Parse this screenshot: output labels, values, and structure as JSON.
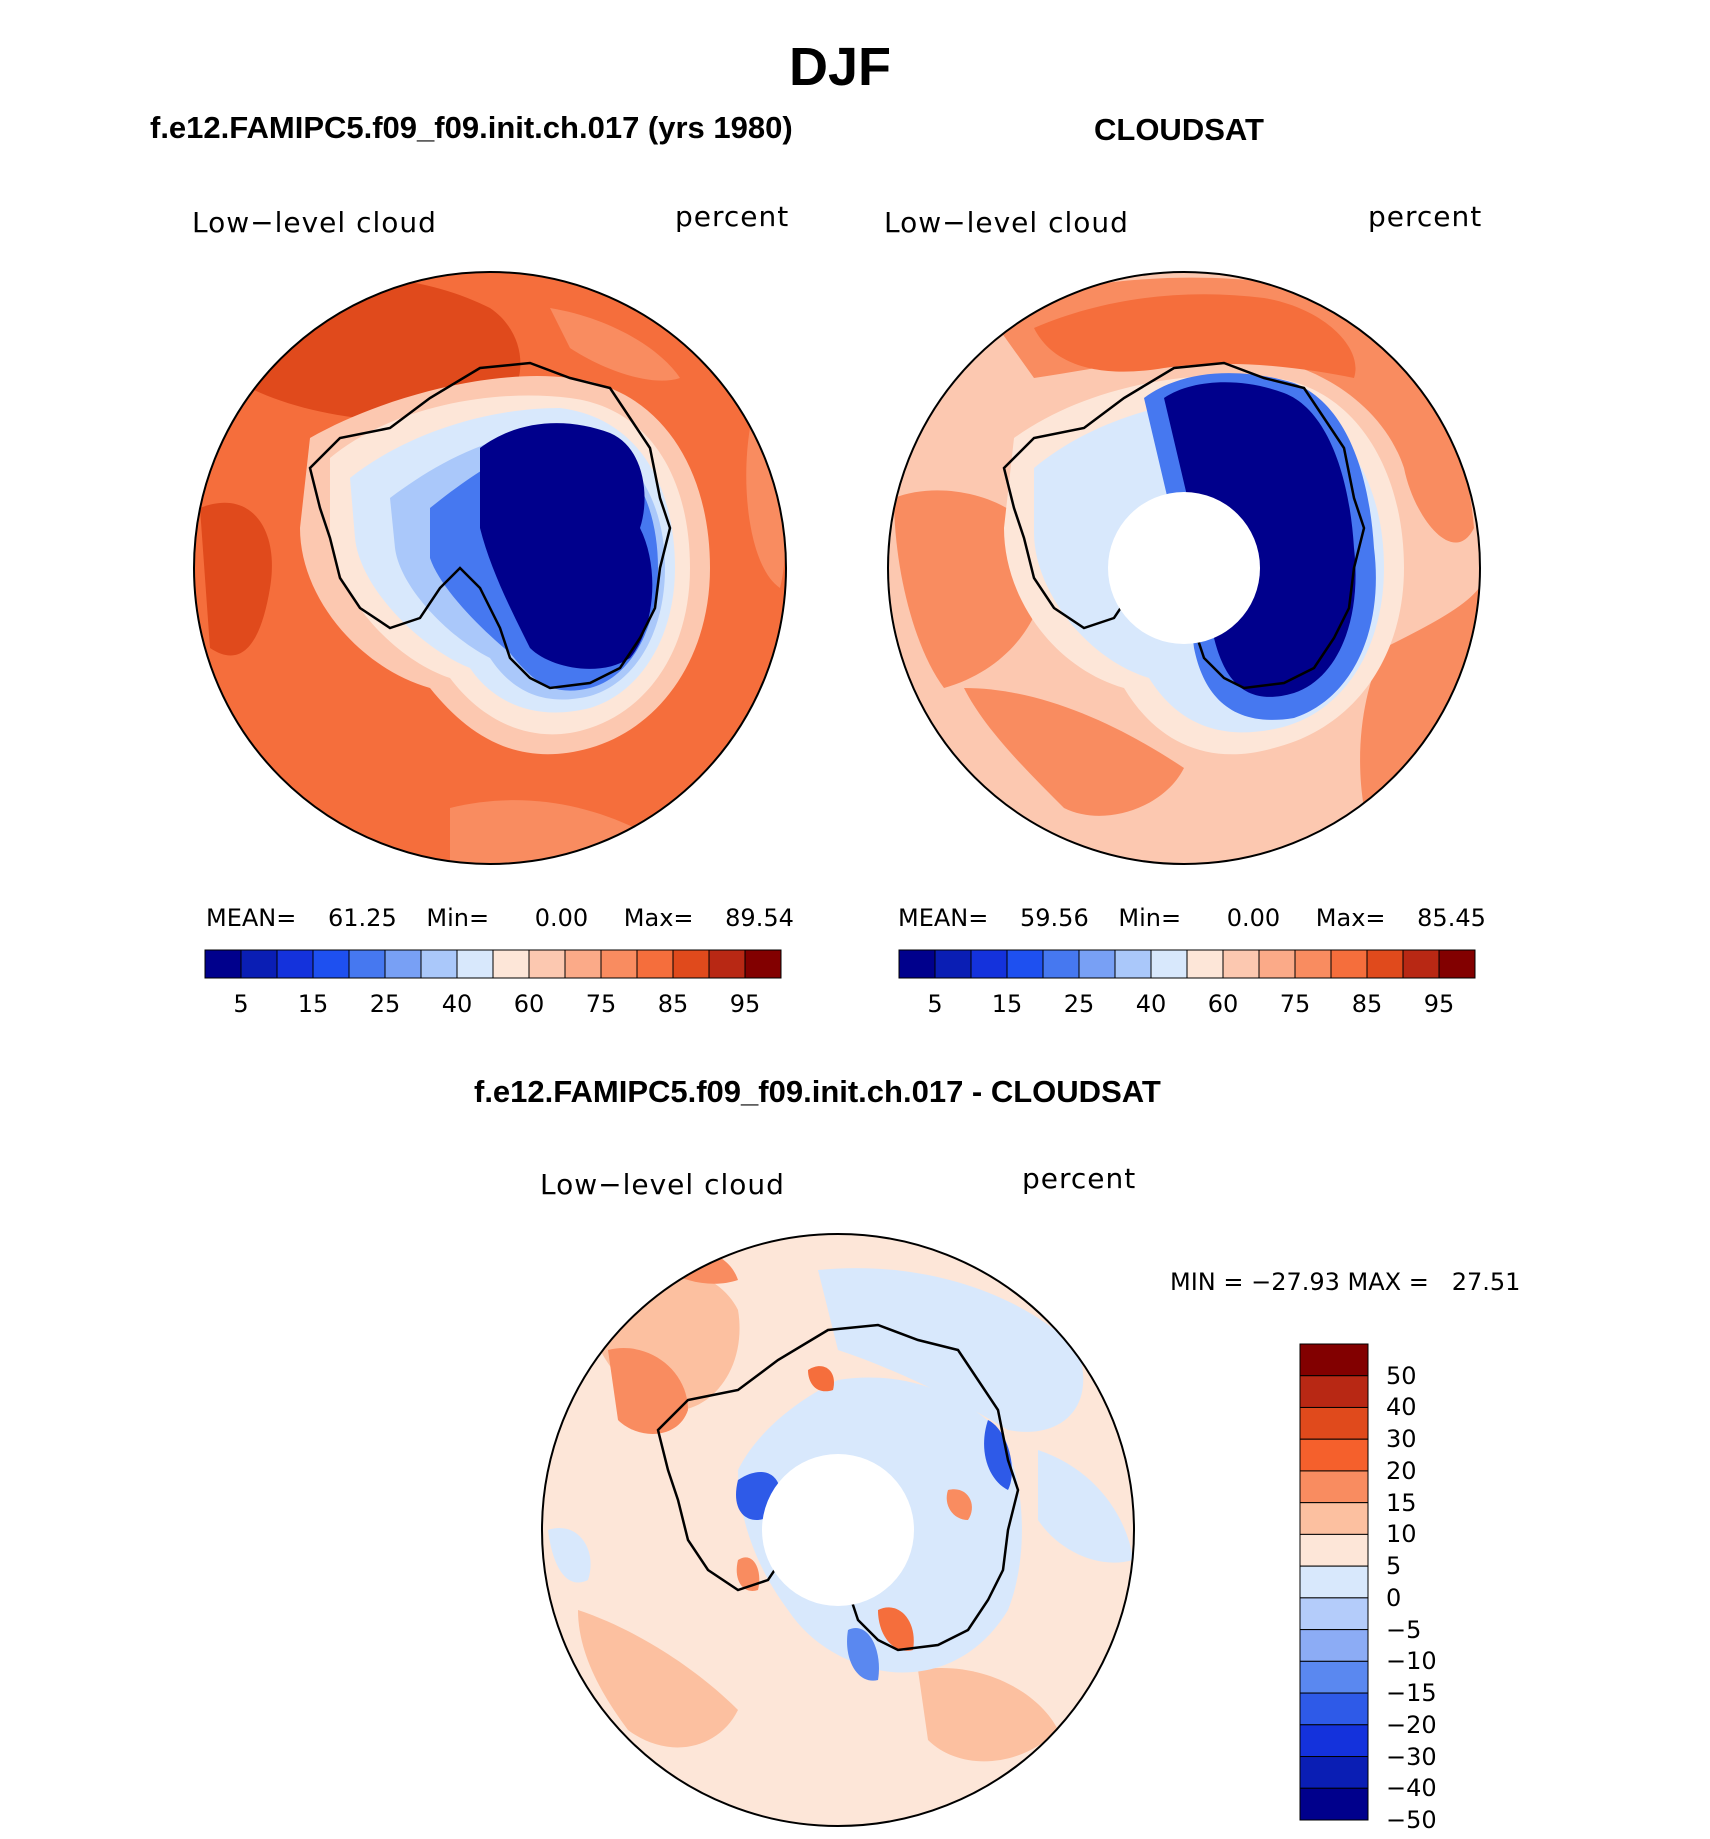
{
  "figure": {
    "season_title": "DJF"
  },
  "panels": [
    {
      "id": "model",
      "header": "f.e12.FAMIPC5.f09_f09.init.ch.017 (yrs 1980)",
      "variable_label": "Low−level cloud",
      "units_label": "percent",
      "stats": {
        "mean_label": "MEAN=",
        "mean": "61.25",
        "min_label": "Min=",
        "min": "0.00",
        "max_label": "Max=",
        "max": "89.54"
      },
      "has_polar_hole": false
    },
    {
      "id": "obs",
      "header": "CLOUDSAT",
      "variable_label": "Low−level cloud",
      "units_label": "percent",
      "stats": {
        "mean_label": "MEAN=",
        "mean": "59.56",
        "min_label": "Min=",
        "min": "0.00",
        "max_label": "Max=",
        "max": "85.45"
      },
      "has_polar_hole": true
    },
    {
      "id": "diff",
      "header": "f.e12.FAMIPC5.f09_f09.init.ch.017 - CLOUDSAT",
      "variable_label": "Low−level cloud",
      "units_label": "percent",
      "stats_line": "MIN = −27.93 MAX =   27.51",
      "has_polar_hole": true
    }
  ],
  "colorbar_abs": {
    "colors": [
      "#00008c",
      "#0a1eb4",
      "#1432dc",
      "#1e50f0",
      "#4678f0",
      "#78a0f5",
      "#aac8fa",
      "#d8e8fc",
      "#fde6d8",
      "#fcc8b0",
      "#fbaa88",
      "#f98c60",
      "#f56e3c",
      "#e04a1c",
      "#b82814",
      "#820000"
    ],
    "tick_labels": [
      "5",
      "15",
      "25",
      "40",
      "60",
      "75",
      "85",
      "95"
    ]
  },
  "colorbar_diff": {
    "colors_top_to_bottom": [
      "#820000",
      "#b82814",
      "#e04a1c",
      "#f5602c",
      "#f98c60",
      "#fcc0a0",
      "#fde6d8",
      "#d8e8fc",
      "#b4ccfa",
      "#8cacf5",
      "#5a88f0",
      "#2e5ae8",
      "#1432dc",
      "#0a1eb4",
      "#00008c"
    ],
    "tick_labels": [
      "50",
      "40",
      "30",
      "20",
      "15",
      "10",
      "5",
      "0",
      "−5",
      "−10",
      "−15",
      "−20",
      "−30",
      "−40",
      "−50"
    ]
  },
  "map_data": {
    "projection": "south polar stereographic",
    "region": "Antarctica and Southern Ocean",
    "field": "low-level cloud fraction",
    "season": "DJF"
  }
}
